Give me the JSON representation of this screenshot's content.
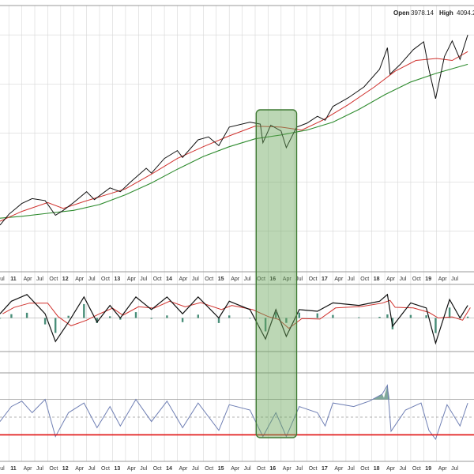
{
  "header": {
    "open_label": "Open",
    "open_value": "3978.14",
    "high_label": "High",
    "high_value": "4094.2"
  },
  "colors": {
    "price": "#111111",
    "ma_fast": "#d0312d",
    "ma_slow": "#2e8b2e",
    "macd": "#111111",
    "signal": "#d0312d",
    "histogram": "#4a8f7a",
    "rsi": "#6f7fb4",
    "rsi_overbought_fill": "#7fa89a",
    "oversold_line": "#e01010",
    "highlight_fill": "#6aa65a",
    "highlight_border": "#3f7a33",
    "grid": "#d7d7d7",
    "panel_border": "#9a9a9a"
  },
  "chart_data": {
    "type": "line",
    "panels": [
      "price",
      "macd",
      "rsi"
    ],
    "x_axis_labels": [
      "Jul",
      "11",
      "Apr",
      "Jul",
      "Oct",
      "12",
      "Apr",
      "Jul",
      "Oct",
      "13",
      "Apr",
      "Jul",
      "Oct",
      "14",
      "Apr",
      "Jul",
      "Oct",
      "15",
      "Apr",
      "Jul",
      "Oct",
      "16",
      "Apr",
      "Jul",
      "Oct",
      "17",
      "Apr",
      "Jul",
      "Oct",
      "18",
      "Apr",
      "Jul",
      "Oct",
      "19",
      "Apr",
      "Jul"
    ],
    "x_axis_year_labels": [
      "11",
      "12",
      "13",
      "14",
      "15",
      "16",
      "17",
      "18",
      "19"
    ],
    "price_series": [
      {
        "x": 2010.58,
        "y": 1060
      },
      {
        "x": 2010.75,
        "y": 1170
      },
      {
        "x": 2011.0,
        "y": 1280
      },
      {
        "x": 2011.2,
        "y": 1330
      },
      {
        "x": 2011.45,
        "y": 1310
      },
      {
        "x": 2011.65,
        "y": 1160
      },
      {
        "x": 2011.8,
        "y": 1210
      },
      {
        "x": 2012.0,
        "y": 1290
      },
      {
        "x": 2012.25,
        "y": 1400
      },
      {
        "x": 2012.4,
        "y": 1320
      },
      {
        "x": 2012.7,
        "y": 1440
      },
      {
        "x": 2012.9,
        "y": 1400
      },
      {
        "x": 2013.1,
        "y": 1500
      },
      {
        "x": 2013.4,
        "y": 1640
      },
      {
        "x": 2013.5,
        "y": 1590
      },
      {
        "x": 2013.75,
        "y": 1740
      },
      {
        "x": 2014.0,
        "y": 1820
      },
      {
        "x": 2014.1,
        "y": 1750
      },
      {
        "x": 2014.4,
        "y": 1930
      },
      {
        "x": 2014.6,
        "y": 1960
      },
      {
        "x": 2014.8,
        "y": 1870
      },
      {
        "x": 2015.0,
        "y": 2060
      },
      {
        "x": 2015.4,
        "y": 2110
      },
      {
        "x": 2015.6,
        "y": 2090
      },
      {
        "x": 2015.65,
        "y": 1900
      },
      {
        "x": 2015.8,
        "y": 2080
      },
      {
        "x": 2016.0,
        "y": 2020
      },
      {
        "x": 2016.1,
        "y": 1850
      },
      {
        "x": 2016.3,
        "y": 2060
      },
      {
        "x": 2016.5,
        "y": 2100
      },
      {
        "x": 2016.7,
        "y": 2170
      },
      {
        "x": 2016.85,
        "y": 2130
      },
      {
        "x": 2017.0,
        "y": 2270
      },
      {
        "x": 2017.3,
        "y": 2360
      },
      {
        "x": 2017.6,
        "y": 2470
      },
      {
        "x": 2017.9,
        "y": 2650
      },
      {
        "x": 2018.05,
        "y": 2870
      },
      {
        "x": 2018.1,
        "y": 2600
      },
      {
        "x": 2018.3,
        "y": 2700
      },
      {
        "x": 2018.55,
        "y": 2850
      },
      {
        "x": 2018.75,
        "y": 2930
      },
      {
        "x": 2018.85,
        "y": 2650
      },
      {
        "x": 2018.98,
        "y": 2350
      },
      {
        "x": 2019.15,
        "y": 2780
      },
      {
        "x": 2019.3,
        "y": 2940
      },
      {
        "x": 2019.45,
        "y": 2750
      },
      {
        "x": 2019.6,
        "y": 3000
      }
    ],
    "ma_fast_series": [
      {
        "x": 2010.58,
        "y": 1100
      },
      {
        "x": 2011.0,
        "y": 1200
      },
      {
        "x": 2011.5,
        "y": 1290
      },
      {
        "x": 2011.8,
        "y": 1230
      },
      {
        "x": 2012.2,
        "y": 1300
      },
      {
        "x": 2012.7,
        "y": 1380
      },
      {
        "x": 2013.0,
        "y": 1430
      },
      {
        "x": 2013.5,
        "y": 1580
      },
      {
        "x": 2014.0,
        "y": 1740
      },
      {
        "x": 2014.5,
        "y": 1860
      },
      {
        "x": 2015.0,
        "y": 1970
      },
      {
        "x": 2015.5,
        "y": 2070
      },
      {
        "x": 2016.0,
        "y": 2060
      },
      {
        "x": 2016.4,
        "y": 2030
      },
      {
        "x": 2016.8,
        "y": 2130
      },
      {
        "x": 2017.3,
        "y": 2290
      },
      {
        "x": 2017.8,
        "y": 2470
      },
      {
        "x": 2018.2,
        "y": 2630
      },
      {
        "x": 2018.6,
        "y": 2740
      },
      {
        "x": 2019.0,
        "y": 2760
      },
      {
        "x": 2019.3,
        "y": 2740
      },
      {
        "x": 2019.6,
        "y": 2830
      }
    ],
    "ma_slow_series": [
      {
        "x": 2010.58,
        "y": 1130
      },
      {
        "x": 2011.0,
        "y": 1150
      },
      {
        "x": 2011.5,
        "y": 1180
      },
      {
        "x": 2012.0,
        "y": 1210
      },
      {
        "x": 2012.5,
        "y": 1270
      },
      {
        "x": 2013.0,
        "y": 1370
      },
      {
        "x": 2013.5,
        "y": 1490
      },
      {
        "x": 2014.0,
        "y": 1630
      },
      {
        "x": 2014.5,
        "y": 1760
      },
      {
        "x": 2015.0,
        "y": 1860
      },
      {
        "x": 2015.5,
        "y": 1940
      },
      {
        "x": 2016.0,
        "y": 1980
      },
      {
        "x": 2016.5,
        "y": 2030
      },
      {
        "x": 2017.0,
        "y": 2110
      },
      {
        "x": 2017.5,
        "y": 2240
      },
      {
        "x": 2018.0,
        "y": 2390
      },
      {
        "x": 2018.5,
        "y": 2520
      },
      {
        "x": 2019.0,
        "y": 2610
      },
      {
        "x": 2019.6,
        "y": 2700
      }
    ],
    "macd_series": [
      {
        "x": 2010.58,
        "y": 5
      },
      {
        "x": 2010.8,
        "y": 20
      },
      {
        "x": 2011.1,
        "y": 28
      },
      {
        "x": 2011.45,
        "y": 5
      },
      {
        "x": 2011.65,
        "y": -28
      },
      {
        "x": 2011.9,
        "y": -5
      },
      {
        "x": 2012.2,
        "y": 25
      },
      {
        "x": 2012.45,
        "y": -5
      },
      {
        "x": 2012.7,
        "y": 15
      },
      {
        "x": 2012.9,
        "y": 0
      },
      {
        "x": 2013.2,
        "y": 25
      },
      {
        "x": 2013.5,
        "y": 10
      },
      {
        "x": 2013.8,
        "y": 25
      },
      {
        "x": 2014.1,
        "y": 5
      },
      {
        "x": 2014.4,
        "y": 25
      },
      {
        "x": 2014.8,
        "y": 0
      },
      {
        "x": 2015.0,
        "y": 20
      },
      {
        "x": 2015.4,
        "y": 10
      },
      {
        "x": 2015.7,
        "y": -25
      },
      {
        "x": 2015.9,
        "y": 10
      },
      {
        "x": 2016.1,
        "y": -22
      },
      {
        "x": 2016.35,
        "y": 10
      },
      {
        "x": 2016.7,
        "y": 8
      },
      {
        "x": 2017.0,
        "y": 18
      },
      {
        "x": 2017.5,
        "y": 15
      },
      {
        "x": 2017.9,
        "y": 20
      },
      {
        "x": 2018.05,
        "y": 28
      },
      {
        "x": 2018.15,
        "y": -10
      },
      {
        "x": 2018.5,
        "y": 18
      },
      {
        "x": 2018.8,
        "y": 12
      },
      {
        "x": 2018.98,
        "y": -30
      },
      {
        "x": 2019.25,
        "y": 22
      },
      {
        "x": 2019.45,
        "y": 0
      },
      {
        "x": 2019.6,
        "y": 15
      }
    ],
    "rsi_series": [
      {
        "x": 2010.58,
        "y": 45
      },
      {
        "x": 2010.8,
        "y": 62
      },
      {
        "x": 2011.0,
        "y": 68
      },
      {
        "x": 2011.2,
        "y": 55
      },
      {
        "x": 2011.45,
        "y": 70
      },
      {
        "x": 2011.65,
        "y": 28
      },
      {
        "x": 2011.9,
        "y": 55
      },
      {
        "x": 2012.2,
        "y": 66
      },
      {
        "x": 2012.45,
        "y": 38
      },
      {
        "x": 2012.7,
        "y": 62
      },
      {
        "x": 2012.9,
        "y": 40
      },
      {
        "x": 2013.2,
        "y": 70
      },
      {
        "x": 2013.5,
        "y": 45
      },
      {
        "x": 2013.8,
        "y": 68
      },
      {
        "x": 2014.1,
        "y": 38
      },
      {
        "x": 2014.4,
        "y": 66
      },
      {
        "x": 2014.8,
        "y": 35
      },
      {
        "x": 2015.0,
        "y": 64
      },
      {
        "x": 2015.4,
        "y": 58
      },
      {
        "x": 2015.65,
        "y": 28
      },
      {
        "x": 2015.9,
        "y": 55
      },
      {
        "x": 2016.1,
        "y": 28
      },
      {
        "x": 2016.35,
        "y": 62
      },
      {
        "x": 2016.7,
        "y": 55
      },
      {
        "x": 2016.85,
        "y": 40
      },
      {
        "x": 2017.0,
        "y": 66
      },
      {
        "x": 2017.4,
        "y": 62
      },
      {
        "x": 2017.7,
        "y": 68
      },
      {
        "x": 2017.95,
        "y": 76
      },
      {
        "x": 2018.05,
        "y": 86
      },
      {
        "x": 2018.12,
        "y": 34
      },
      {
        "x": 2018.4,
        "y": 58
      },
      {
        "x": 2018.7,
        "y": 66
      },
      {
        "x": 2018.85,
        "y": 35
      },
      {
        "x": 2018.98,
        "y": 25
      },
      {
        "x": 2019.2,
        "y": 64
      },
      {
        "x": 2019.45,
        "y": 40
      },
      {
        "x": 2019.6,
        "y": 66
      }
    ],
    "rsi_levels": {
      "overbought": 70,
      "oversold": 30
    },
    "highlight_range": {
      "from": 2015.52,
      "to": 2016.3
    }
  }
}
